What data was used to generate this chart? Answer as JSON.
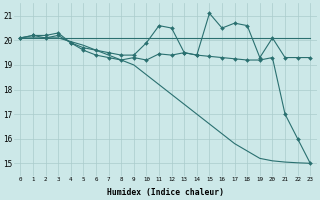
{
  "xlabel": "Humidex (Indice chaleur)",
  "bg_color": "#cce8e8",
  "grid_color": "#aacccc",
  "line_color": "#2a7070",
  "xlim": [
    -0.5,
    23.5
  ],
  "ylim": [
    14.5,
    21.5
  ],
  "yticks": [
    15,
    16,
    17,
    18,
    19,
    20,
    21
  ],
  "xtick_labels": [
    "0",
    "1",
    "2",
    "3",
    "4",
    "5",
    "6",
    "7",
    "8",
    "9",
    "10",
    "11",
    "12",
    "13",
    "14",
    "15",
    "16",
    "17",
    "18",
    "19",
    "20",
    "21",
    "22",
    "23"
  ],
  "line1_x": [
    0,
    1,
    2,
    3,
    4,
    5,
    6,
    7,
    8,
    9,
    10,
    11,
    12,
    13,
    14,
    15,
    16,
    17,
    18,
    19,
    20,
    21,
    22,
    23
  ],
  "line1_y": [
    20.1,
    20.1,
    20.1,
    20.1,
    20.1,
    20.1,
    20.1,
    20.1,
    20.1,
    20.1,
    20.1,
    20.1,
    20.1,
    20.1,
    20.1,
    20.1,
    20.1,
    20.1,
    20.1,
    20.1,
    20.1,
    20.1,
    20.1,
    20.1
  ],
  "line2_x": [
    0,
    1,
    2,
    3,
    4,
    5,
    6,
    7,
    8,
    9,
    10,
    11,
    12,
    13,
    14,
    15,
    16,
    17,
    18,
    19,
    20,
    21,
    22,
    23
  ],
  "line2_y": [
    20.1,
    20.2,
    20.1,
    20.2,
    19.9,
    19.7,
    19.6,
    19.5,
    19.4,
    19.4,
    19.9,
    20.6,
    20.5,
    19.5,
    19.4,
    21.1,
    20.5,
    20.7,
    20.6,
    19.3,
    20.1,
    19.3,
    19.3,
    19.3
  ],
  "line3_x": [
    0,
    1,
    2,
    3,
    4,
    5,
    6,
    7,
    8,
    9,
    10,
    11,
    12,
    13,
    14,
    15,
    16,
    17,
    18,
    19,
    20,
    21,
    22,
    23
  ],
  "line3_y": [
    20.1,
    20.2,
    20.2,
    20.3,
    19.9,
    19.6,
    19.4,
    19.3,
    19.2,
    19.3,
    19.2,
    19.45,
    19.4,
    19.5,
    19.4,
    19.35,
    19.3,
    19.25,
    19.2,
    19.2,
    19.3,
    17.0,
    16.0,
    15.0
  ],
  "line4_x": [
    0,
    1,
    2,
    3,
    4,
    5,
    6,
    7,
    8,
    9,
    10,
    11,
    12,
    13,
    14,
    15,
    16,
    17,
    18,
    19,
    20,
    21,
    22,
    23
  ],
  "line4_y": [
    20.1,
    20.1,
    20.1,
    20.1,
    19.95,
    19.8,
    19.6,
    19.4,
    19.2,
    19.0,
    18.6,
    18.2,
    17.8,
    17.4,
    17.0,
    16.6,
    16.2,
    15.8,
    15.5,
    15.2,
    15.1,
    15.05,
    15.02,
    15.0
  ]
}
